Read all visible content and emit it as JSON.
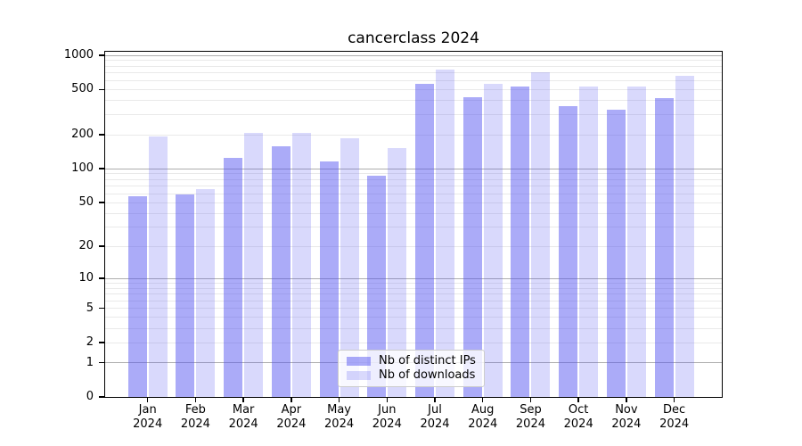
{
  "chart_data": {
    "type": "bar",
    "title": "cancerclass 2024",
    "categories": [
      "Jan 2024",
      "Feb 2024",
      "Mar 2024",
      "Apr 2024",
      "May 2024",
      "Jun 2024",
      "Jul 2024",
      "Aug 2024",
      "Sep 2024",
      "Oct 2024",
      "Nov 2024",
      "Dec 2024"
    ],
    "series": [
      {
        "name": "Nb of distinct IPs",
        "values": [
          57,
          59,
          125,
          158,
          116,
          87,
          565,
          425,
          535,
          355,
          334,
          420
        ],
        "color": "#5050f0",
        "alpha": 0.48
      },
      {
        "name": "Nb of downloads",
        "values": [
          192,
          66,
          206,
          208,
          186,
          151,
          745,
          557,
          710,
          528,
          530,
          658
        ],
        "color": "#5050f0",
        "alpha": 0.22
      }
    ],
    "yscale": "log10(value+1)",
    "yticks": [
      0,
      1,
      2,
      5,
      10,
      20,
      50,
      100,
      200,
      500,
      1000
    ],
    "major_grid_values": [
      1,
      10,
      100,
      1000
    ],
    "minor_grid_values": [
      2,
      3,
      4,
      5,
      6,
      7,
      8,
      9,
      20,
      30,
      40,
      50,
      60,
      70,
      80,
      90,
      200,
      300,
      400,
      500,
      600,
      700,
      800,
      900
    ],
    "ylim": [
      0,
      1000
    ],
    "grid": true,
    "legend_position": "inside-bottom-center",
    "xlabel": "",
    "ylabel": ""
  },
  "colors": {
    "background": "#ffffff",
    "bar_base": "#5050f0",
    "major_grid": "#aeaeae",
    "minor_grid": "#e9e9e9",
    "axis": "#000000",
    "legend_border": "#cccccc"
  }
}
